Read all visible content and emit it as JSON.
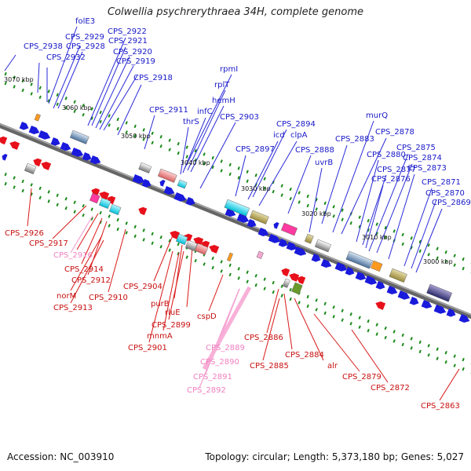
{
  "title": "Colwellia psychrerythraea 34H, complete genome",
  "footer": {
    "accession": "Accession: NC_003910",
    "topology": "Topology: circular; Length: 5,373,180 bp; Genes: 5,027"
  },
  "colors": {
    "forward": "#1a1adc",
    "reverse": "#e8101a",
    "pseudo_label": "#f080c0",
    "scale_tick": "#1a8a1a",
    "backbone": "#777777"
  },
  "scale_labels": [
    "3070 kbp",
    "3060 kbp",
    "3050 kbp",
    "3040 kbp",
    "3030 kbp",
    "3020 kbp",
    "3010 kbp",
    "3000 kbp"
  ],
  "top_labels": [
    "folE3",
    "CPS_2922",
    "CPS_2929",
    "CPS_2921",
    "CPS_2928",
    "CPS_2920",
    "CPS_2938",
    "CPS_2932",
    "CPS_2919",
    "CPS_2918",
    "rpmI",
    "rplT",
    "hemH",
    "infC",
    "CPS_2911",
    "thrS",
    "CPS_2903",
    "CPS_2894",
    "icd",
    "clpA",
    "CPS_2897",
    "CPS_2888",
    "uvrB",
    "murQ",
    "CPS_2878",
    "CPS_2883",
    "CPS_2880",
    "CPS_2875",
    "CPS_2874",
    "CPS_2877",
    "CPS_2873",
    "CPS_2876",
    "CPS_2871",
    "CPS_2870",
    "CPS_2869"
  ],
  "bottom_labels": [
    "CPS_2926",
    "CPS_2917",
    "CPS_2916",
    "CPS_2914",
    "CPS_2912",
    "norM",
    "CPS_2910",
    "CPS_2913",
    "CPS_2904",
    "purB",
    "rluE",
    "CPS_2899",
    "mnmA",
    "CPS_2901",
    "cspD",
    "CPS_2889",
    "CPS_2890",
    "CPS_2891",
    "CPS_2892",
    "CPS_2886",
    "CPS_2884",
    "CPS_2885",
    "alr",
    "CPS_2879",
    "CPS_2872",
    "CPS_2863"
  ]
}
